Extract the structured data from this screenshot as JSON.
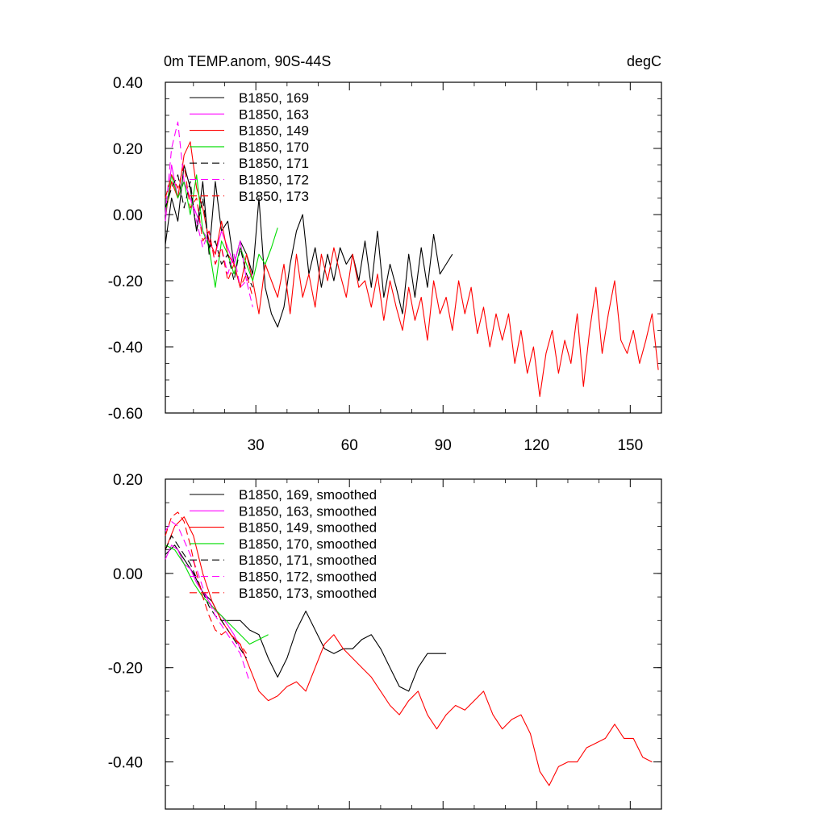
{
  "chart_data": [
    {
      "type": "line",
      "title_left": "0m TEMP.anom, 90S-44S",
      "title_right": "degC",
      "xlim": [
        1,
        160
      ],
      "ylim": [
        -0.6,
        0.4
      ],
      "xticks": [
        30,
        60,
        90,
        120,
        150
      ],
      "xtick_labels": [
        "30",
        "60",
        "90",
        "120",
        "150"
      ],
      "yticks": [
        0.4,
        0.2,
        0.0,
        -0.2,
        -0.4,
        -0.6
      ],
      "ytick_labels": [
        "0.40",
        "0.20",
        "0.00",
        "-0.20",
        "-0.40",
        "-0.60"
      ],
      "series": [
        {
          "name": "B1850, 169",
          "color": "#000000",
          "dash": false,
          "x": [
            1,
            3,
            5,
            7,
            9,
            11,
            13,
            15,
            17,
            19,
            21,
            23,
            25,
            27,
            29,
            31,
            33,
            35,
            37,
            39,
            41,
            43,
            45,
            47,
            49,
            51,
            53,
            55,
            57,
            59,
            61,
            63,
            65,
            67,
            69,
            71,
            73,
            75,
            77,
            79,
            81,
            83,
            85,
            87,
            89,
            91,
            93
          ],
          "values": [
            -0.09,
            0.05,
            -0.02,
            0.15,
            0.08,
            -0.05,
            0.1,
            -0.12,
            0.1,
            -0.05,
            -0.02,
            -0.15,
            -0.08,
            -0.12,
            -0.18,
            0.05,
            -0.22,
            -0.3,
            -0.34,
            -0.28,
            -0.15,
            -0.05,
            0.0,
            -0.18,
            -0.1,
            -0.22,
            -0.12,
            -0.2,
            -0.1,
            -0.15,
            -0.12,
            -0.2,
            -0.08,
            -0.22,
            -0.05,
            -0.25,
            -0.15,
            -0.22,
            -0.3,
            -0.12,
            -0.25,
            -0.1,
            -0.22,
            -0.06,
            -0.18,
            -0.15,
            -0.12
          ]
        },
        {
          "name": "B1850, 163",
          "color": "#ff00ff",
          "dash": false,
          "x": [
            1,
            3,
            5,
            7,
            9,
            11,
            13,
            15,
            17,
            19,
            21,
            23,
            25,
            27,
            29
          ],
          "values": [
            -0.02,
            0.15,
            0.05,
            0.1,
            0.05,
            0.0,
            -0.05,
            -0.08,
            -0.12,
            -0.05,
            -0.1,
            -0.15,
            -0.08,
            -0.2,
            -0.18
          ]
        },
        {
          "name": "B1850, 149",
          "color": "#ff0000",
          "dash": false,
          "x": [
            1,
            3,
            5,
            7,
            9,
            11,
            13,
            15,
            17,
            19,
            21,
            23,
            25,
            27,
            29,
            31,
            33,
            35,
            37,
            39,
            41,
            43,
            45,
            47,
            49,
            51,
            53,
            55,
            57,
            59,
            61,
            63,
            65,
            67,
            69,
            71,
            73,
            75,
            77,
            79,
            81,
            83,
            85,
            87,
            89,
            91,
            93,
            95,
            97,
            99,
            101,
            103,
            105,
            107,
            109,
            111,
            113,
            115,
            117,
            119,
            121,
            123,
            125,
            127,
            129,
            131,
            133,
            135,
            137,
            139,
            141,
            143,
            145,
            147,
            149,
            151,
            153,
            155,
            157,
            159
          ],
          "values": [
            0.0,
            0.1,
            0.05,
            0.18,
            0.22,
            0.08,
            0.02,
            -0.08,
            -0.12,
            -0.02,
            -0.12,
            -0.15,
            -0.22,
            -0.12,
            -0.2,
            -0.3,
            -0.15,
            -0.2,
            -0.25,
            -0.15,
            -0.3,
            -0.12,
            -0.25,
            -0.18,
            -0.28,
            -0.12,
            -0.2,
            -0.1,
            -0.18,
            -0.25,
            -0.12,
            -0.22,
            -0.2,
            -0.28,
            -0.18,
            -0.32,
            -0.2,
            -0.28,
            -0.35,
            -0.22,
            -0.32,
            -0.25,
            -0.38,
            -0.2,
            -0.3,
            -0.25,
            -0.35,
            -0.2,
            -0.3,
            -0.22,
            -0.36,
            -0.28,
            -0.4,
            -0.3,
            -0.38,
            -0.3,
            -0.45,
            -0.35,
            -0.48,
            -0.4,
            -0.55,
            -0.42,
            -0.35,
            -0.48,
            -0.38,
            -0.45,
            -0.3,
            -0.52,
            -0.35,
            -0.22,
            -0.42,
            -0.3,
            -0.2,
            -0.38,
            -0.42,
            -0.35,
            -0.45,
            -0.38,
            -0.3,
            -0.47
          ]
        },
        {
          "name": "B1850, 170",
          "color": "#00dd00",
          "dash": false,
          "x": [
            1,
            3,
            5,
            7,
            9,
            11,
            13,
            15,
            17,
            19,
            21,
            23,
            25,
            27,
            29,
            31,
            33,
            35,
            37
          ],
          "values": [
            0.0,
            0.12,
            0.05,
            0.1,
            0.0,
            0.12,
            -0.05,
            -0.1,
            -0.22,
            -0.08,
            -0.12,
            -0.18,
            -0.1,
            -0.15,
            -0.2,
            -0.12,
            -0.15,
            -0.1,
            -0.04
          ]
        },
        {
          "name": "B1850, 171",
          "color": "#000000",
          "dash": true,
          "x": [
            1,
            3,
            5,
            7,
            9,
            11,
            13,
            15,
            17,
            19,
            21,
            23,
            25,
            27,
            29
          ],
          "values": [
            0.02,
            0.08,
            0.12,
            0.02,
            0.1,
            -0.05,
            0.05,
            -0.1,
            -0.08,
            -0.15,
            -0.12,
            -0.2,
            -0.1,
            -0.18,
            -0.22
          ]
        },
        {
          "name": "B1850, 172",
          "color": "#ff00ff",
          "dash": true,
          "x": [
            1,
            3,
            5,
            7,
            9,
            11,
            13,
            15,
            17,
            19,
            21,
            23,
            25,
            27,
            29
          ],
          "values": [
            0.0,
            0.2,
            0.28,
            0.1,
            0.05,
            -0.02,
            -0.1,
            -0.05,
            -0.15,
            -0.1,
            -0.18,
            -0.12,
            -0.22,
            -0.2,
            -0.28
          ]
        },
        {
          "name": "B1850, 173",
          "color": "#ff0000",
          "dash": true,
          "x": [
            1,
            3,
            5,
            7,
            9,
            11,
            13,
            15,
            17,
            19,
            21,
            23,
            25,
            27,
            29
          ],
          "values": [
            0.05,
            0.12,
            0.08,
            0.15,
            0.02,
            0.05,
            -0.08,
            -0.05,
            -0.15,
            -0.1,
            -0.2,
            -0.15,
            -0.22,
            -0.18,
            -0.25
          ]
        }
      ]
    },
    {
      "type": "line",
      "xlim": [
        1,
        160
      ],
      "ylim": [
        -0.5,
        0.2
      ],
      "xticks": [
        30,
        60,
        90,
        120,
        150
      ],
      "yticks": [
        0.2,
        0.0,
        -0.2,
        -0.4
      ],
      "ytick_labels": [
        "0.20",
        "0.00",
        "-0.20",
        "-0.40"
      ],
      "series": [
        {
          "name": "B1850, 169, smoothed",
          "color": "#000000",
          "dash": false,
          "x": [
            1,
            4,
            7,
            10,
            13,
            16,
            19,
            22,
            25,
            28,
            31,
            34,
            37,
            40,
            43,
            46,
            49,
            52,
            55,
            58,
            61,
            64,
            67,
            70,
            73,
            76,
            79,
            82,
            85,
            88,
            91
          ],
          "values": [
            0.04,
            0.06,
            0.03,
            0.0,
            -0.04,
            -0.06,
            -0.1,
            -0.1,
            -0.1,
            -0.12,
            -0.13,
            -0.18,
            -0.22,
            -0.18,
            -0.12,
            -0.08,
            -0.12,
            -0.16,
            -0.17,
            -0.16,
            -0.16,
            -0.14,
            -0.13,
            -0.16,
            -0.2,
            -0.24,
            -0.25,
            -0.2,
            -0.17,
            -0.17,
            -0.17
          ]
        },
        {
          "name": "B1850, 163, smoothed",
          "color": "#ff00ff",
          "dash": false,
          "x": [
            1,
            3,
            5,
            7,
            9,
            11,
            13,
            15,
            17,
            19,
            21,
            23,
            25,
            27
          ],
          "values": [
            0.03,
            0.06,
            0.05,
            0.02,
            0.01,
            -0.02,
            -0.04,
            -0.06,
            -0.08,
            -0.09,
            -0.11,
            -0.13,
            -0.16,
            -0.18
          ]
        },
        {
          "name": "B1850, 149, smoothed",
          "color": "#ff0000",
          "dash": false,
          "x": [
            1,
            4,
            7,
            10,
            13,
            16,
            19,
            22,
            25,
            28,
            31,
            34,
            37,
            40,
            43,
            46,
            49,
            52,
            55,
            58,
            61,
            64,
            67,
            70,
            73,
            76,
            79,
            82,
            85,
            88,
            91,
            94,
            97,
            100,
            103,
            106,
            109,
            112,
            115,
            118,
            121,
            124,
            127,
            130,
            133,
            136,
            139,
            142,
            145,
            148,
            151,
            154,
            157
          ],
          "values": [
            0.05,
            0.1,
            0.12,
            0.08,
            0.0,
            -0.06,
            -0.1,
            -0.13,
            -0.15,
            -0.2,
            -0.25,
            -0.27,
            -0.26,
            -0.24,
            -0.23,
            -0.25,
            -0.2,
            -0.15,
            -0.13,
            -0.16,
            -0.18,
            -0.2,
            -0.22,
            -0.25,
            -0.28,
            -0.3,
            -0.27,
            -0.25,
            -0.3,
            -0.33,
            -0.3,
            -0.28,
            -0.29,
            -0.27,
            -0.25,
            -0.3,
            -0.33,
            -0.31,
            -0.3,
            -0.34,
            -0.42,
            -0.45,
            -0.41,
            -0.4,
            -0.4,
            -0.37,
            -0.36,
            -0.35,
            -0.32,
            -0.35,
            -0.35,
            -0.39,
            -0.4
          ]
        },
        {
          "name": "B1850, 170, smoothed",
          "color": "#00dd00",
          "dash": false,
          "x": [
            1,
            4,
            7,
            10,
            13,
            16,
            19,
            22,
            25,
            28,
            31,
            34
          ],
          "values": [
            0.06,
            0.05,
            0.02,
            -0.02,
            -0.05,
            -0.07,
            -0.09,
            -0.11,
            -0.13,
            -0.15,
            -0.14,
            -0.13
          ]
        },
        {
          "name": "B1850, 171, smoothed",
          "color": "#000000",
          "dash": true,
          "x": [
            1,
            3,
            5,
            7,
            9,
            11,
            13,
            15,
            17,
            19,
            21,
            23,
            25,
            27
          ],
          "values": [
            0.05,
            0.08,
            0.06,
            0.04,
            0.02,
            -0.01,
            -0.04,
            -0.07,
            -0.09,
            -0.1,
            -0.12,
            -0.14,
            -0.16,
            -0.18
          ]
        },
        {
          "name": "B1850, 172, smoothed",
          "color": "#ff00ff",
          "dash": true,
          "x": [
            1,
            3,
            5,
            7,
            9,
            11,
            13,
            15,
            17,
            19,
            21,
            23,
            25,
            27,
            28
          ],
          "values": [
            0.09,
            0.11,
            0.1,
            0.07,
            0.04,
            0.01,
            -0.03,
            -0.06,
            -0.09,
            -0.11,
            -0.13,
            -0.15,
            -0.17,
            -0.21,
            -0.23
          ]
        },
        {
          "name": "B1850, 173, smoothed",
          "color": "#ff0000",
          "dash": true,
          "x": [
            1,
            3,
            5,
            7,
            9,
            11,
            13,
            15,
            17,
            19,
            21,
            23,
            25,
            27
          ],
          "values": [
            0.08,
            0.12,
            0.13,
            0.11,
            0.06,
            0.0,
            -0.05,
            -0.09,
            -0.12,
            -0.13,
            -0.12,
            -0.14,
            -0.15,
            -0.17
          ]
        }
      ]
    }
  ]
}
